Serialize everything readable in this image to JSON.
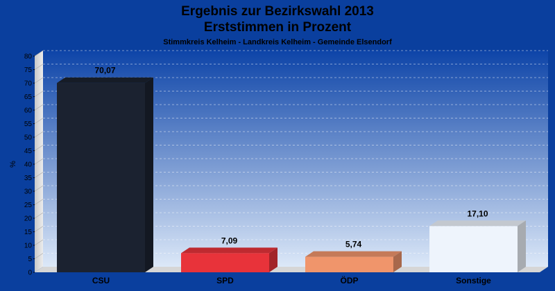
{
  "chart_data": {
    "type": "bar",
    "title": "Ergebnis zur Bezirkswahl 2013",
    "title_line2": "Erststimmen in Prozent",
    "subtitle": "Stimmkreis Kelheim - Landkreis Kelheim - Gemeinde Elsendorf",
    "ylabel": "%",
    "ylim": [
      0,
      80
    ],
    "ytick_step": 5,
    "grid": true,
    "categories": [
      "CSU",
      "SPD",
      "ÖDP",
      "Sonstige"
    ],
    "values": [
      70.07,
      7.09,
      5.74,
      17.1
    ],
    "value_labels": [
      "70,07",
      "7,09",
      "5,74",
      "17,10"
    ],
    "colors": [
      "#1b2230",
      "#e8333a",
      "#f0956b",
      "#eef4fc"
    ],
    "background_color": "#0a3f9e"
  }
}
